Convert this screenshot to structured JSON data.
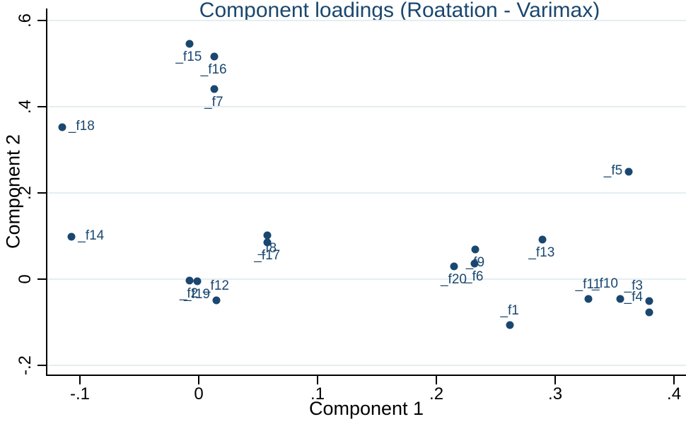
{
  "window": {
    "kind": "statistical-plot"
  },
  "colors": {
    "marker": "#1a476f",
    "marker_label": "#1a476f",
    "title": "#1a476f",
    "axis": "#000000",
    "gridline": "#e4eef1",
    "background": "#ffffff"
  },
  "chart_data": {
    "type": "scatter",
    "title": "Component loadings (Roatation - Varimax)",
    "xlabel": "Component 1",
    "ylabel": "Component 2",
    "xlim": [
      -0.1274,
      0.4101
    ],
    "ylim": [
      -0.2213,
      0.6279
    ],
    "grid": "horizontal-only",
    "legend": "none",
    "x_ticks": [
      {
        "value": -0.1,
        "label": "-.1"
      },
      {
        "value": 0,
        "label": "0"
      },
      {
        "value": 0.1,
        "label": ".1"
      },
      {
        "value": 0.2,
        "label": ".2"
      },
      {
        "value": 0.3,
        "label": ".3"
      },
      {
        "value": 0.4,
        "label": ".4"
      }
    ],
    "y_ticks": [
      {
        "value": 0.6,
        "label": ".6"
      },
      {
        "value": 0.4,
        "label": ".4"
      },
      {
        "value": 0.2,
        "label": ".2"
      },
      {
        "value": 0,
        "label": "0"
      },
      {
        "value": -0.2,
        "label": "-.2"
      }
    ],
    "points": [
      {
        "name": "_f1",
        "x": 0.262,
        "y": -0.107,
        "label_side": "above"
      },
      {
        "name": "_f2",
        "x": -0.008,
        "y": -0.003,
        "label_side": "below"
      },
      {
        "name": "_f3",
        "x": 0.379,
        "y": -0.051,
        "label_side": "above-left"
      },
      {
        "name": "_f4",
        "x": 0.379,
        "y": -0.077,
        "label_side": "above-left"
      },
      {
        "name": "_f5",
        "x": 0.362,
        "y": 0.249,
        "label_side": "left"
      },
      {
        "name": "_f6",
        "x": 0.232,
        "y": 0.036,
        "label_side": "below"
      },
      {
        "name": "_f7",
        "x": 0.013,
        "y": 0.441,
        "label_side": "below"
      },
      {
        "name": "_f8",
        "x": 0.058,
        "y": 0.102,
        "label_side": "below"
      },
      {
        "name": "_f9",
        "x": 0.233,
        "y": 0.069,
        "label_side": "below"
      },
      {
        "name": "_f10",
        "x": 0.355,
        "y": -0.046,
        "label_side": "above-left"
      },
      {
        "name": "_f11",
        "x": 0.328,
        "y": -0.046,
        "label_side": "above"
      },
      {
        "name": "_f12",
        "x": 0.015,
        "y": -0.049,
        "label_side": "above"
      },
      {
        "name": "_f13",
        "x": 0.289,
        "y": 0.092,
        "label_side": "below"
      },
      {
        "name": "_f14",
        "x": -0.107,
        "y": 0.098,
        "label_side": "right"
      },
      {
        "name": "_f15",
        "x": -0.008,
        "y": 0.546,
        "label_side": "below"
      },
      {
        "name": "_f16",
        "x": 0.013,
        "y": 0.516,
        "label_side": "below"
      },
      {
        "name": "_f17",
        "x": 0.058,
        "y": 0.085,
        "label_side": "below"
      },
      {
        "name": "_f18",
        "x": -0.115,
        "y": 0.352,
        "label_side": "right"
      },
      {
        "name": "_f19",
        "x": -0.001,
        "y": -0.005,
        "label_side": "below"
      },
      {
        "name": "_f20",
        "x": 0.215,
        "y": 0.03,
        "label_side": "below"
      }
    ]
  }
}
